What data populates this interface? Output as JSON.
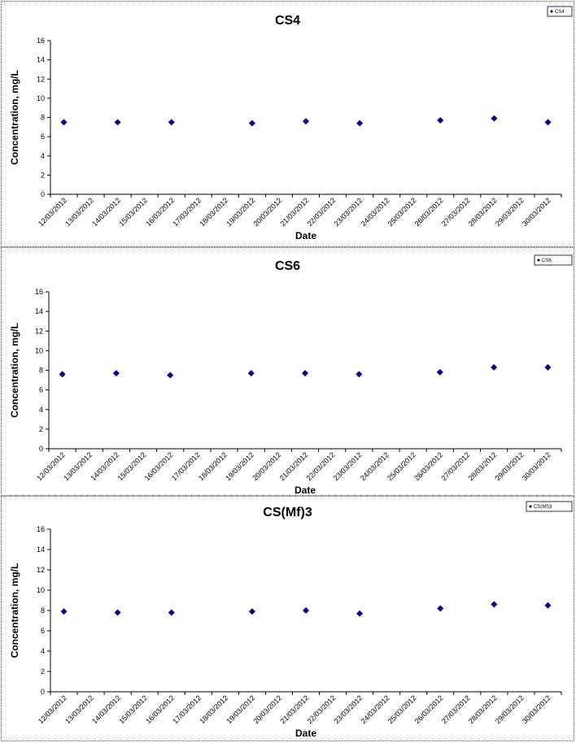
{
  "chart_data": [
    {
      "type": "scatter",
      "title": "CS4",
      "xlabel": "Date",
      "ylabel": "Concentration, mg/L",
      "x_ticks": [
        "12/03/2012",
        "13/03/2012",
        "14/03/2012",
        "15/03/2012",
        "16/03/2012",
        "17/03/2012",
        "18/03/2012",
        "19/03/2012",
        "20/03/2012",
        "21/03/2012",
        "22/03/2012",
        "23/03/2012",
        "24/03/2012",
        "25/03/2012",
        "26/03/2012",
        "27/03/2012",
        "28/03/2012",
        "29/03/2012",
        "30/03/2012"
      ],
      "y_ticks": [
        "0",
        "2",
        "4",
        "6",
        "8",
        "10",
        "12",
        "14",
        "16"
      ],
      "ylim": [
        0,
        16
      ],
      "legend_position": "top-right",
      "series": [
        {
          "name": "CS4",
          "color": "#000080",
          "x": [
            "12/03/2012",
            "14/03/2012",
            "16/03/2012",
            "19/03/2012",
            "21/03/2012",
            "23/03/2012",
            "26/03/2012",
            "28/03/2012",
            "30/03/2012"
          ],
          "y": [
            7.5,
            7.5,
            7.5,
            7.4,
            7.6,
            7.4,
            7.7,
            7.9,
            7.5
          ]
        }
      ]
    },
    {
      "type": "scatter",
      "title": "CS6",
      "xlabel": "Date",
      "ylabel": "Concentration, mg/L",
      "x_ticks": [
        "12/03/2012",
        "13/03/2012",
        "14/03/2012",
        "15/03/2012",
        "16/03/2012",
        "17/03/2012",
        "18/03/2012",
        "19/03/2012",
        "20/03/2012",
        "21/03/2012",
        "22/03/2012",
        "23/03/2012",
        "24/03/2012",
        "25/03/2012",
        "26/03/2012",
        "27/03/2012",
        "28/03/2012",
        "29/03/2012",
        "30/03/2012"
      ],
      "y_ticks": [
        "0",
        "2",
        "4",
        "6",
        "8",
        "10",
        "12",
        "14",
        "16"
      ],
      "ylim": [
        0,
        16
      ],
      "legend_position": "top-right",
      "series": [
        {
          "name": "CS6",
          "color": "#000080",
          "x": [
            "12/03/2012",
            "14/03/2012",
            "16/03/2012",
            "19/03/2012",
            "21/03/2012",
            "23/03/2012",
            "26/03/2012",
            "28/03/2012",
            "30/03/2012"
          ],
          "y": [
            7.6,
            7.7,
            7.5,
            7.7,
            7.7,
            7.6,
            7.8,
            8.3,
            8.3
          ]
        }
      ]
    },
    {
      "type": "scatter",
      "title": "CS(Mf)3",
      "xlabel": "Date",
      "ylabel": "Concentration, mg/L",
      "x_ticks": [
        "12/03/2012",
        "13/03/2012",
        "14/03/2012",
        "15/03/2012",
        "16/03/2012",
        "17/03/2012",
        "18/03/2012",
        "19/03/2012",
        "20/03/2012",
        "21/03/2012",
        "22/03/2012",
        "23/03/2012",
        "24/03/2012",
        "25/03/2012",
        "26/03/2012",
        "27/03/2012",
        "28/03/2012",
        "29/03/2012",
        "30/03/2012"
      ],
      "y_ticks": [
        "0",
        "2",
        "4",
        "6",
        "8",
        "10",
        "12",
        "14",
        "16"
      ],
      "ylim": [
        0,
        16
      ],
      "legend_position": "top-right",
      "series": [
        {
          "name": "CS(Mf)3",
          "color": "#000080",
          "x": [
            "12/03/2012",
            "14/03/2012",
            "16/03/2012",
            "19/03/2012",
            "21/03/2012",
            "23/03/2012",
            "26/03/2012",
            "28/03/2012",
            "30/03/2012"
          ],
          "y": [
            7.9,
            7.8,
            7.8,
            7.9,
            8.0,
            7.7,
            8.2,
            8.6,
            8.5
          ]
        }
      ]
    }
  ]
}
